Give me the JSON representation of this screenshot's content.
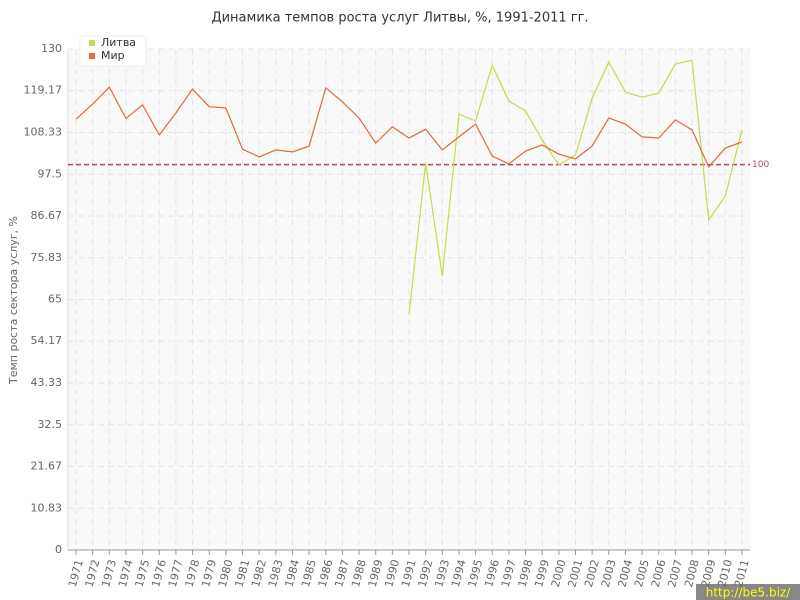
{
  "chart_data": {
    "type": "line",
    "title": "Динамика темпов роста услуг Литвы, %, 1991-2011 гг.",
    "y_label": "Темп роста сектора услуг, %",
    "categories": [
      "1971",
      "1972",
      "1973",
      "1974",
      "1975",
      "1976",
      "1977",
      "1978",
      "1979",
      "1980",
      "1981",
      "1982",
      "1983",
      "1984",
      "1985",
      "1986",
      "1987",
      "1988",
      "1989",
      "1990",
      "1991",
      "1992",
      "1993",
      "1994",
      "1995",
      "1996",
      "1997",
      "1998",
      "1999",
      "2000",
      "2001",
      "2002",
      "2003",
      "2004",
      "2005",
      "2006",
      "2007",
      "2008",
      "2009",
      "2010",
      "2011"
    ],
    "series": [
      {
        "name": "Литва",
        "color": "#c2dd4e",
        "values": [
          null,
          null,
          null,
          null,
          null,
          null,
          null,
          null,
          null,
          null,
          null,
          null,
          null,
          null,
          null,
          null,
          null,
          null,
          null,
          null,
          61,
          100.4,
          71.1,
          113.1,
          111.3,
          125.8,
          116.5,
          113.9,
          106.4,
          99.9,
          102.5,
          117.3,
          126.6,
          118.8,
          117.5,
          118.6,
          126.1,
          127.1,
          85.6,
          91.9,
          109
        ]
      },
      {
        "name": "Мир",
        "color": "#e0693a",
        "values": [
          111.8,
          115.7,
          120.1,
          112,
          115.5,
          107.7,
          113.4,
          119.6,
          115,
          114.7,
          104,
          102,
          103.8,
          103.3,
          104.8,
          119.9,
          116.3,
          112.1,
          105.6,
          109.8,
          106.9,
          109.2,
          103.8,
          107.2,
          110.5,
          102.2,
          100.2,
          103.5,
          105.1,
          102.7,
          101.5,
          104.8,
          112.1,
          110.5,
          107.2,
          106.9,
          111.6,
          109,
          99.4,
          104.3,
          105.9
        ]
      }
    ],
    "reference_line": {
      "value": 100,
      "color": "#b5475a"
    },
    "ylim": [
      0,
      130
    ],
    "yticks": [
      0,
      10.83,
      21.67,
      32.5,
      43.33,
      54.17,
      65,
      75.83,
      86.67,
      97.5,
      108.33,
      119.17,
      130
    ],
    "grid": true,
    "legend": "top-left",
    "watermark": "http://be5.biz/"
  }
}
